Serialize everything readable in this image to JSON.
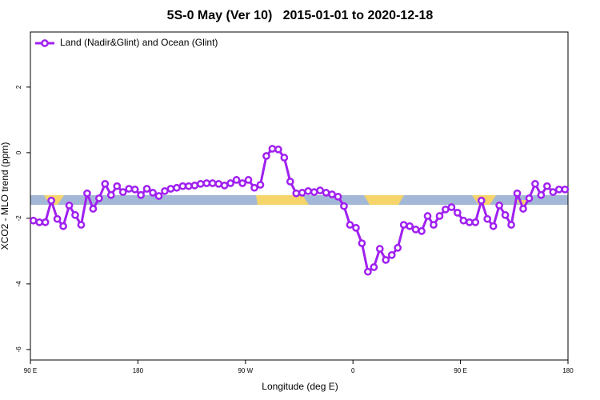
{
  "chart_data": {
    "type": "line",
    "title": "5S-0 May (Ver 10)   2015-01-01 to 2020-12-18",
    "x_label": "Longitude (deg E)",
    "y_label": "XCO2 - MLO trend (ppm)",
    "xlim": [
      90,
      540
    ],
    "xticks": [
      {
        "value": 90,
        "label": "90 E"
      },
      180,
      {
        "value": 270,
        "label": "90 W"
      },
      {
        "value": 360,
        "label": "0"
      },
      {
        "value": 450,
        "label": "90 E"
      },
      {
        "value": 540,
        "label": "180"
      }
    ],
    "ylim": [
      -6.32,
      3.68
    ],
    "yticks": [
      -6,
      -4,
      -2,
      0,
      2
    ],
    "legend": "upper left",
    "x": [
      92.5,
      97.5,
      102.5,
      107.5,
      112.5,
      117.5,
      122.5,
      127.5,
      132.5,
      137.5,
      142.5,
      147.5,
      152.5,
      157.5,
      162.5,
      167.5,
      172.5,
      177.5,
      182.5,
      187.5,
      192.5,
      197.5,
      202.5,
      207.5,
      212.5,
      217.5,
      222.5,
      227.5,
      232.5,
      237.5,
      242.5,
      247.5,
      252.5,
      257.5,
      262.5,
      267.5,
      272.5,
      277.5,
      282.5,
      287.5,
      292.5,
      297.5,
      302.5,
      307.5,
      312.5,
      317.5,
      322.5,
      327.5,
      332.5,
      337.5,
      342.5,
      347.5,
      352.5,
      357.5,
      362.5,
      367.5,
      372.5,
      377.5,
      382.5,
      387.5,
      392.5,
      397.5,
      402.5,
      407.5,
      412.5,
      417.5,
      422.5,
      427.5,
      432.5,
      437.5,
      442.5,
      447.5,
      452.5,
      457.5,
      462.5,
      467.5,
      472.5,
      477.5,
      482.5,
      487.5,
      492.5,
      497.5,
      502.5,
      507.5,
      512.5,
      517.5,
      522.5,
      527.5,
      532.5,
      537.5
    ],
    "series": [
      {
        "name": "Land (Nadir&Glint) and Ocean (Glint)",
        "color": "#a020f0",
        "values": [
          -2.07,
          -2.12,
          -2.12,
          -1.46,
          -2.02,
          -2.24,
          -1.61,
          -1.9,
          -2.2,
          -1.24,
          -1.71,
          -1.39,
          -0.95,
          -1.29,
          -1.02,
          -1.2,
          -1.1,
          -1.12,
          -1.29,
          -1.1,
          -1.22,
          -1.32,
          -1.17,
          -1.1,
          -1.07,
          -1.02,
          -1.02,
          -1.0,
          -0.95,
          -0.93,
          -0.93,
          -0.95,
          -1.0,
          -0.93,
          -0.83,
          -0.93,
          -0.83,
          -1.07,
          -0.98,
          -0.1,
          0.12,
          0.1,
          -0.15,
          -0.88,
          -1.24,
          -1.22,
          -1.17,
          -1.2,
          -1.15,
          -1.22,
          -1.27,
          -1.34,
          -1.63,
          -2.2,
          -2.29,
          -2.76,
          -3.63,
          -3.49,
          -2.93,
          -3.27,
          -3.12,
          -2.9,
          -2.2,
          -2.24,
          -2.34,
          -2.39,
          -1.93,
          -2.2,
          -1.93,
          -1.73,
          -1.66,
          -1.83,
          -2.07,
          -2.12,
          -2.12,
          -1.46,
          -2.02,
          -2.24,
          -1.61,
          -1.9,
          -2.2,
          -1.24,
          -1.71,
          -1.39,
          -0.95,
          -1.29,
          -1.02,
          -1.2,
          -1.12,
          -1.12
        ]
      }
    ]
  }
}
